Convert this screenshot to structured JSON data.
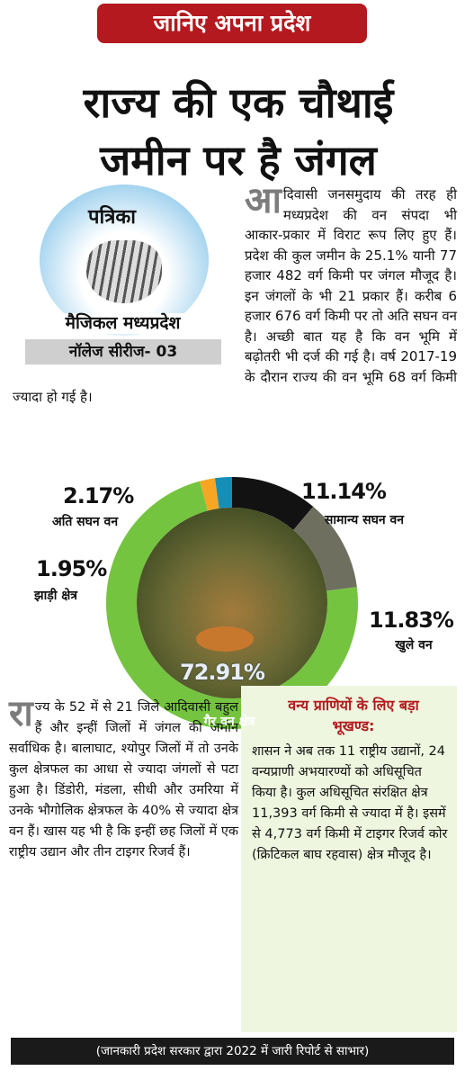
{
  "banner": "जानिए अपना प्रदेश",
  "headline": [
    "राज्य की एक चौथाई",
    "जमीन पर है जंगल"
  ],
  "logo": {
    "brand": "पत्रिका",
    "series": "मैजिकल मध्यप्रदेश",
    "episode": "नॉलेज सीरीज- 03"
  },
  "intro": {
    "drop_cap": "आ",
    "text": "दिवासी जनसमुदाय की तरह ही मध्यप्रदेश की वन संपदा भी आकार-प्रकार में विराट रूप लिए हुए हैं। प्रदेश की कुल जमीन के 25.1% यानी 77 हजार 482 वर्ग किमी पर जंगल मौजूद है। इन जंगलों के भी 21 प्रकार हैं। करीब 6 हजार 676 वर्ग किमी पर तो अति सघन वन है। अच्छी बात यह है कि वन भूमि में बढ़ोतरी भी दर्ज की गई है। वर्ष 2017-19 के दौरान राज्य की वन भूमि 68 वर्ग किमी ज्यादा हो गई है।"
  },
  "chart_data": {
    "type": "donut",
    "categories": [
      "सामान्य सघन वन",
      "खुले वन",
      "गैर वन क्षेत्र",
      "झाड़ी क्षेत्र",
      "अति सघन वन"
    ],
    "values": [
      11.14,
      11.83,
      72.91,
      1.95,
      2.17
    ],
    "value_labels": [
      "11.14%",
      "11.83%",
      "72.91%",
      "1.95%",
      "2.17%"
    ],
    "colors": [
      "#121212",
      "#6f6f60",
      "#74c43f",
      "#f6a623",
      "#168fb6"
    ]
  },
  "districts": {
    "drop_cap": "रा",
    "text": "ज्य के 52 में से 21 जिले आदिवासी बहुल हैं और इन्हीं जिलों में जंगल की जमीन सर्वाधिक है। बालाघाट, श्योपुर जिलों में तो उनके कुल क्षेत्रफल का आधा से ज्यादा जंगलों से पटा हुआ है। डिंडोरी, मंडला, सीधी और उमरिया में उनके भौगोलिक क्षेत्रफल के 40% से ज्यादा क्षेत्र वन हैं। खास यह भी है कि इन्हीं छह जिलों में एक राष्ट्रीय उद्यान और तीन टाइगर रिजर्व हैं।"
  },
  "wildlife": {
    "heading": "वन्य प्राणियों के लिए बड़ा भूखण्ड:",
    "text": "शासन ने अब तक 11 राष्ट्रीय उद्यानों, 24 वन्यप्राणी अभयारण्यों को अधिसूचित किया है। कुल अधिसूचित संरक्षित क्षेत्र 11,393 वर्ग किमी से ज्यादा में है। इसमें से 4,773 वर्ग किमी में टाइगर रिजर्व कोर (क्रिटिकल बाघ रहवास) क्षेत्र मौजूद है।"
  },
  "footer": "(जानकारी प्रदेश सरकार द्वारा 2022 में जारी रिपोर्ट से साभार)"
}
